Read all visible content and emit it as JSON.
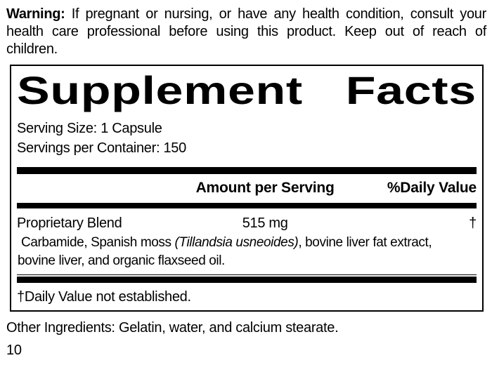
{
  "warning": {
    "label": "Warning:",
    "line1_rest": "If pregnant or nursing, or have any health condition, consult your",
    "line2": "health care professional before using this product. Keep out of reach of",
    "line3": "children."
  },
  "panel": {
    "title_left": "Supplement",
    "title_right": "Facts",
    "serving_size": "Serving Size: 1 Capsule",
    "servings_per_container": "Servings per Container: 150",
    "columns": {
      "amount_header": "Amount per Serving",
      "daily_value_header": "%Daily Value"
    },
    "ingredient_row": {
      "name": "Proprietary Blend",
      "amount": "515 mg",
      "daily_value": "†",
      "description_line1_pre": "Carbamide, Spanish moss ",
      "description_line1_italic": "(Tillandsia usneoides)",
      "description_line1_post": ", bovine liver fat extract,",
      "description_line2": "bovine liver, and organic flaxseed oil."
    },
    "footnote": "†Daily Value not established."
  },
  "other_ingredients": "Other Ingredients: Gelatin, water, and calcium stearate.",
  "page_number": "10",
  "colors": {
    "text": "#000000",
    "background": "#ffffff",
    "rule": "#000000"
  }
}
